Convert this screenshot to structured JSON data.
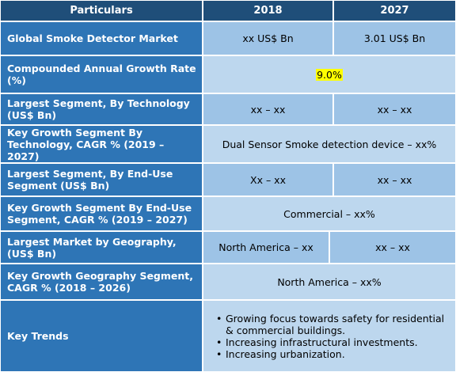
{
  "header": {
    "particulars": "Particulars",
    "col_2018": "2018",
    "col_2027": "2027"
  },
  "rows": [
    {
      "label": "Global Smoke Detector Market",
      "v2018": "xx US$ Bn",
      "v2027": "3.01 US$ Bn"
    },
    {
      "label": "Compounded Annual Growth Rate (%)",
      "merged": "9.0%"
    },
    {
      "label": "Largest Segment, By Technology (US$ Bn)",
      "v2018": "xx – xx",
      "v2027": "xx – xx"
    },
    {
      "label": "Key Growth Segment By Technology, CAGR % (2019 – 2027)",
      "merged": "Dual Sensor Smoke detection device – xx%"
    },
    {
      "label": "Largest Segment, By End-Use Segment (US$ Bn)",
      "v2018": "Xx – xx",
      "v2027": "xx – xx"
    },
    {
      "label": "Key Growth Segment By End-Use Segment, CAGR % (2019 – 2027)",
      "merged": "Commercial  – xx%"
    },
    {
      "label": "Largest Market by Geography, (US$ Bn)",
      "v2018": "North America – xx",
      "v2027": "xx – xx"
    },
    {
      "label": "Key Growth Geography Segment, CAGR % (2018 – 2026)",
      "merged": "North America – xx%"
    }
  ],
  "key_trends": {
    "label": "Key Trends",
    "items": [
      "Growing focus towards safety for residential & commercial buildings.",
      "Increasing infrastructural investments.",
      "Increasing urbanization."
    ]
  },
  "colors": {
    "header_bg": "#1f4e79",
    "label_bg": "#2e75b6",
    "value_bg": "#9dc3e6",
    "value_alt_bg": "#bdd7ee",
    "highlight": "#ffff00"
  }
}
